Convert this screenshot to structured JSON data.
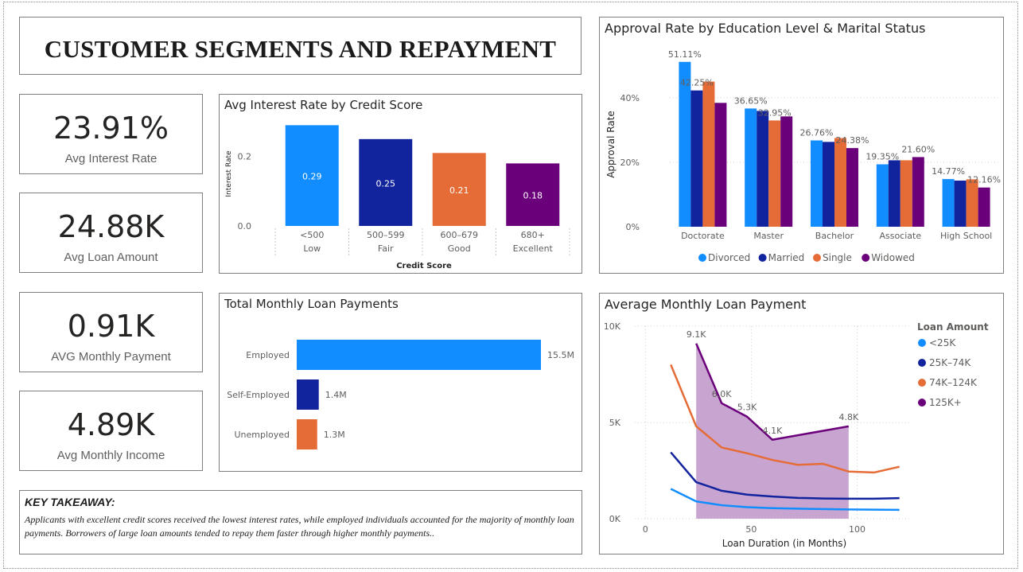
{
  "title": "CUSTOMER SEGMENTS AND REPAYMENT",
  "kpis": [
    {
      "value": "23.91%",
      "label": "Avg Interest Rate"
    },
    {
      "value": "24.88K",
      "label": "Avg Loan Amount"
    },
    {
      "value": "0.91K",
      "label": "AVG Monthly Payment"
    },
    {
      "value": "4.89K",
      "label": "Avg Monthly Income"
    }
  ],
  "takeaway": {
    "heading": "KEY TAKEAWAY:",
    "text": "Applicants with excellent credit scores received the lowest interest rates, while employed individuals accounted for the majority of monthly loan payments. Borrowers of large loan amounts tended to repay them faster through higher monthly payments.."
  },
  "colors": {
    "blue": "#118DFF",
    "navy": "#12239E",
    "orange": "#E66C37",
    "purple": "#6B007B",
    "purple_fill": "#C29ACB"
  },
  "chart_data": [
    {
      "id": "interest",
      "type": "bar",
      "title": "Avg Interest Rate by Credit Score",
      "xlabel": "Credit Score",
      "ylabel": "Interest Rate",
      "categories": [
        [
          "<500",
          "Low"
        ],
        [
          "500–599",
          "Fair"
        ],
        [
          "600–679",
          "Good"
        ],
        [
          "680+",
          "Excellent"
        ]
      ],
      "values": [
        0.29,
        0.25,
        0.21,
        0.18
      ],
      "value_labels": [
        "0.29",
        "0.25",
        "0.21",
        "0.18"
      ],
      "colors": [
        "#118DFF",
        "#12239E",
        "#E66C37",
        "#6B007B"
      ],
      "yticks": [
        {
          "v": 0,
          "t": "0.0"
        },
        {
          "v": 0.2,
          "t": "0.2"
        }
      ],
      "ylim": [
        0,
        0.3
      ]
    },
    {
      "id": "approval",
      "type": "bar",
      "title": "Approval Rate by Education Level & Marital Status",
      "ylabel": "Approval Rate",
      "categories": [
        "Doctorate",
        "Master",
        "Bachelor",
        "Associate",
        "High School"
      ],
      "series": [
        {
          "name": "Divorced",
          "color": "#118DFF",
          "values": [
            51.11,
            36.65,
            26.76,
            19.35,
            14.77
          ]
        },
        {
          "name": "Married",
          "color": "#12239E",
          "values": [
            42.25,
            35.9,
            26.3,
            20.6,
            14.3
          ]
        },
        {
          "name": "Single",
          "color": "#E66C37",
          "values": [
            45.0,
            32.95,
            27.5,
            20.6,
            14.7
          ]
        },
        {
          "name": "Widowed",
          "color": "#6B007B",
          "values": [
            38.4,
            34.2,
            24.38,
            21.6,
            12.16
          ]
        }
      ],
      "data_labels": [
        {
          "series": 0,
          "cat": 0,
          "text": "51.11%"
        },
        {
          "series": 1,
          "cat": 0,
          "text": "42.25%"
        },
        {
          "series": 0,
          "cat": 1,
          "text": "36.65%"
        },
        {
          "series": 2,
          "cat": 1,
          "text": "32.95%"
        },
        {
          "series": 0,
          "cat": 2,
          "text": "26.76%"
        },
        {
          "series": 3,
          "cat": 2,
          "text": "24.38%"
        },
        {
          "series": 0,
          "cat": 3,
          "text": "19.35%"
        },
        {
          "series": 3,
          "cat": 3,
          "text": "21.60%"
        },
        {
          "series": 0,
          "cat": 4,
          "text": "14.77%"
        },
        {
          "series": 3,
          "cat": 4,
          "text": "12.16%"
        }
      ],
      "yticks": [
        {
          "v": 0,
          "t": "0%"
        },
        {
          "v": 20,
          "t": "20%"
        },
        {
          "v": 40,
          "t": "40%"
        }
      ],
      "ylim": [
        0,
        55
      ],
      "legend_position": "bottom"
    },
    {
      "id": "payments",
      "type": "bar",
      "orientation": "horizontal",
      "title": "Total Monthly Loan Payments",
      "categories": [
        "Employed",
        "Self-Employed",
        "Unemployed"
      ],
      "values": [
        15.5,
        1.4,
        1.3
      ],
      "value_labels": [
        "15.5M",
        "1.4M",
        "1.3M"
      ],
      "unit": "M",
      "colors": [
        "#118DFF",
        "#12239E",
        "#E66C37"
      ],
      "xlim": [
        0,
        15.5
      ]
    },
    {
      "id": "avgpay",
      "type": "line",
      "title": "Average Monthly Loan Payment",
      "xlabel": "Loan Duration (in Months)",
      "legend_title": "Loan Amount",
      "xlim": [
        -5,
        125
      ],
      "ylim": [
        0,
        10000
      ],
      "xticks": [
        {
          "v": 0,
          "t": "0"
        },
        {
          "v": 50,
          "t": "50"
        },
        {
          "v": 100,
          "t": "100"
        }
      ],
      "yticks": [
        {
          "v": 0,
          "t": "0K"
        },
        {
          "v": 5000,
          "t": "5K"
        },
        {
          "v": 10000,
          "t": "10K"
        }
      ],
      "series": [
        {
          "name": "<25K",
          "color": "#118DFF",
          "x": [
            12,
            24,
            36,
            48,
            60,
            72,
            84,
            96,
            108,
            120
          ],
          "y": [
            1550,
            900,
            700,
            600,
            550,
            520,
            500,
            480,
            470,
            460
          ]
        },
        {
          "name": "25K–74K",
          "color": "#12239E",
          "x": [
            12,
            24,
            36,
            48,
            60,
            72,
            84,
            96,
            108,
            120
          ],
          "y": [
            3450,
            1900,
            1450,
            1250,
            1150,
            1080,
            1050,
            1040,
            1040,
            1070
          ]
        },
        {
          "name": "74K–124K",
          "color": "#E66C37",
          "x": [
            12,
            24,
            36,
            48,
            60,
            72,
            84,
            96,
            108,
            120
          ],
          "y": [
            8000,
            4800,
            3700,
            3400,
            3050,
            2800,
            2850,
            2450,
            2400,
            2700
          ]
        },
        {
          "name": "125K+",
          "color": "#6B007B",
          "x": [
            24,
            36,
            48,
            60,
            96
          ],
          "y": [
            9100,
            6000,
            5300,
            4100,
            4800
          ],
          "area": true
        }
      ],
      "data_labels": [
        {
          "x": 24,
          "y": 9100,
          "text": "9.1K"
        },
        {
          "x": 36,
          "y": 6000,
          "text": "6.0K"
        },
        {
          "x": 48,
          "y": 5300,
          "text": "5.3K"
        },
        {
          "x": 60,
          "y": 4100,
          "text": "4.1K"
        },
        {
          "x": 96,
          "y": 4800,
          "text": "4.8K"
        }
      ]
    }
  ]
}
